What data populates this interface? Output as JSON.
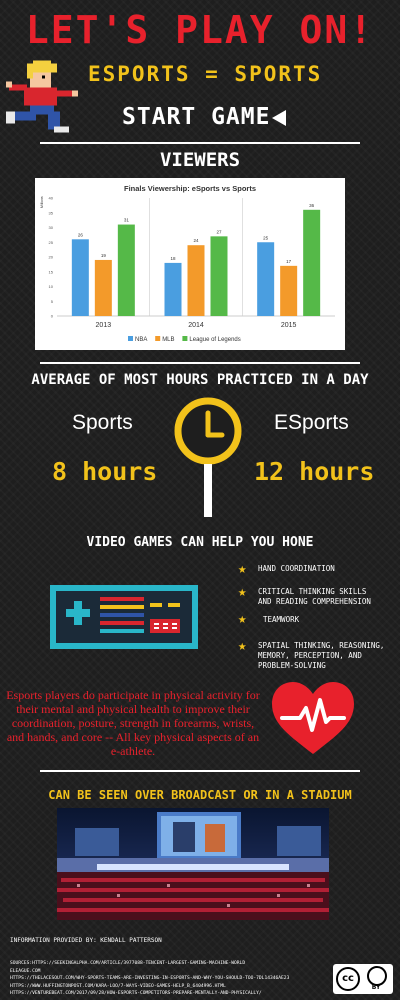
{
  "header": {
    "title": "LET'S PLAY ON!",
    "subtitle": "ESPORTS = SPORTS",
    "start_label": "START GAME"
  },
  "viewers_heading": "VIEWERS",
  "chart_data": {
    "type": "bar",
    "title": "Finals Viewership: eSports vs Sports",
    "ylabel": "Millions",
    "categories": [
      "2013",
      "2014",
      "2015"
    ],
    "series": [
      {
        "name": "NBA",
        "values": [
          26,
          18,
          25
        ],
        "color": "#4a9ee0"
      },
      {
        "name": "MLB",
        "values": [
          19,
          24,
          17
        ],
        "color": "#f39a2a"
      },
      {
        "name": "League of Legends",
        "values": [
          31,
          27,
          36
        ],
        "color": "#55b948"
      }
    ],
    "ylim": [
      0,
      40
    ],
    "yticks": [
      0,
      5,
      10,
      15,
      20,
      25,
      30,
      35,
      40
    ],
    "legend_position": "bottom",
    "grid": false
  },
  "hours_section": {
    "heading": "AVERAGE OF MOST HOURS PRACTICED IN A DAY",
    "left_label": "Sports",
    "right_label": "ESports",
    "left_value": "8 hours",
    "right_value": "12 hours"
  },
  "hone_section": {
    "heading": "VIDEO GAMES CAN HELP YOU HONE",
    "benefits": [
      "HAND COORDINATION",
      "CRITICAL THINKING SKILLS AND READING COMPREHENSION",
      "TEAMWORK",
      "SPATIAL THINKING, REASONING, MEMORY, PERCEPTION, AND PROBLEM-SOLVING"
    ]
  },
  "physical_text": "Esports players do participate in physical activity for their mental and physical health to improve their coordination, posture, strength in forearms, wrists, and hands, and core -- All key physical aspects of an e-athlete.",
  "broadcast_heading": "CAN BE SEEN OVER BROADCAST OR IN A STADIUM",
  "credit": "INFORMATION PROVIDED BY: KENDALL PATTERSON",
  "sources": [
    "SOURCES:HTTPS://SEEKINGALPHA.COM/ARTICLE/3977088-TENCENT-LARGEST-GAMING-MACHINE-WORLD",
    "ELEAGUE.COM",
    "HTTPS://THELACESOUT.COM/WHY-SPORTS-TEAMS-ARE-INVESTING-IN-ESPORTS-AND-WHY-YOU-SHOULD-TOO-7DL14346AE23",
    "HTTPS://WWW.HUFFINGTONPOST.COM/KARA-LOO/7-WAYS-VIDEO-GAMES-HELP_B_6404996.HTML",
    "HTTPS://VENTUREBEAT.COM/2017/09/28/HOW-ESPORTS-COMPETITORS-PREPARE-MENTALLY-AND-PHYSICALLY/"
  ],
  "license": {
    "cc": "cc",
    "by": "BY"
  },
  "colors": {
    "red": "#e8212c",
    "yellow": "#f2c21b",
    "background": "#1e1e1e"
  }
}
